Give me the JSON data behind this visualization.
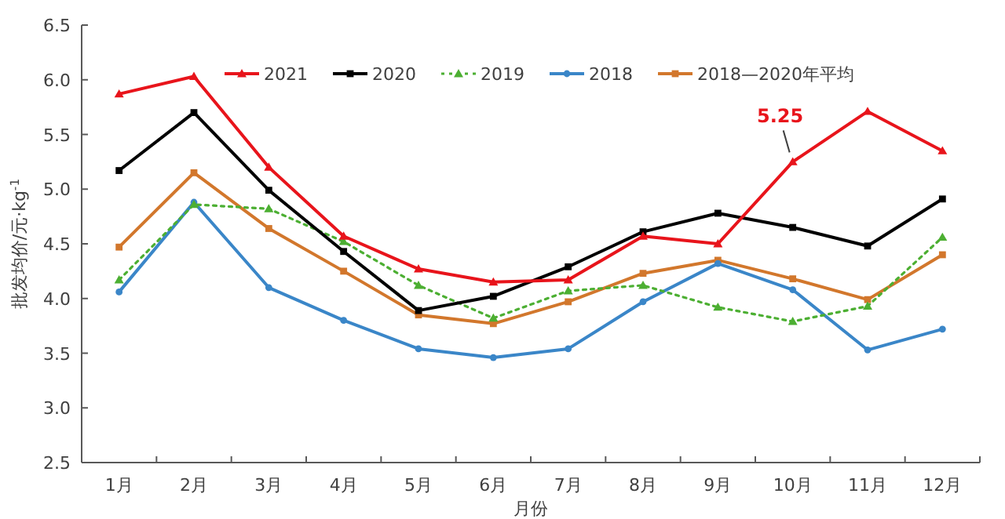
{
  "chart_data": {
    "type": "line",
    "xlabel": "月份",
    "ylabel": "批发均价/元·kg$^{-1}$",
    "categories": [
      "1月",
      "2月",
      "3月",
      "4月",
      "5月",
      "6月",
      "7月",
      "8月",
      "9月",
      "10月",
      "11月",
      "12月"
    ],
    "series": [
      {
        "name": "2021",
        "color": "#e8141b",
        "marker": "triangle",
        "line_style": "solid",
        "values": [
          5.87,
          6.03,
          5.2,
          4.57,
          4.27,
          4.15,
          4.17,
          4.57,
          4.5,
          5.25,
          5.71,
          5.35
        ]
      },
      {
        "name": "2020",
        "color": "#000000",
        "marker": "square",
        "line_style": "solid",
        "values": [
          5.17,
          5.7,
          4.99,
          4.43,
          3.89,
          4.02,
          4.29,
          4.61,
          4.78,
          4.65,
          4.48,
          4.91
        ]
      },
      {
        "name": "2019",
        "color": "#4caf32",
        "marker": "triangle",
        "line_style": "dotted",
        "values": [
          4.17,
          4.86,
          4.82,
          4.52,
          4.12,
          3.82,
          4.07,
          4.12,
          3.92,
          3.79,
          3.93,
          4.56
        ]
      },
      {
        "name": "2018",
        "color": "#3a86c8",
        "marker": "circle",
        "line_style": "solid",
        "values": [
          4.06,
          4.88,
          4.1,
          3.8,
          3.54,
          3.46,
          3.54,
          3.97,
          4.32,
          4.08,
          3.53,
          3.72
        ]
      },
      {
        "name": "2018—2020年平均",
        "color": "#d2772c",
        "marker": "square",
        "line_style": "solid",
        "values": [
          4.47,
          5.15,
          4.64,
          4.25,
          3.85,
          3.77,
          3.97,
          4.23,
          4.35,
          4.18,
          3.99,
          4.4
        ]
      }
    ],
    "ylim": [
      2.5,
      6.5
    ],
    "yticks": [
      2.5,
      {
        "value": 3,
        "label": "3.0"
      },
      3.5,
      {
        "value": 4,
        "label": "4.0"
      },
      4.5,
      {
        "value": 5,
        "label": "5.0"
      },
      5.5,
      {
        "value": 6,
        "label": "6.0"
      },
      6.5
    ],
    "annotations": [
      {
        "text": "5.25",
        "x": "10月",
        "y": 5.25
      }
    ],
    "legend": "top",
    "grid": false
  }
}
